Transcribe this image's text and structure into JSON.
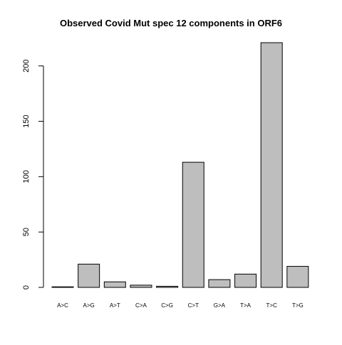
{
  "chart_data": {
    "type": "bar",
    "title": "Observed Covid Mut spec 12 components in ORF6",
    "xlabel": "",
    "ylabel": "",
    "categories": [
      "A>C",
      "A>G",
      "A>T",
      "C>A",
      "C>G",
      "C>T",
      "G>A",
      "T>A",
      "T>C",
      "T>G"
    ],
    "values": [
      0,
      21,
      5,
      2,
      1,
      113,
      7,
      12,
      221,
      19
    ],
    "ylim": [
      0,
      221
    ],
    "yticks": [
      0,
      50,
      100,
      150,
      200
    ],
    "grid": false,
    "legend": "none",
    "colors": {
      "bar_fill": "#bebebe",
      "bar_stroke": "#000000",
      "axis": "#000000"
    }
  }
}
